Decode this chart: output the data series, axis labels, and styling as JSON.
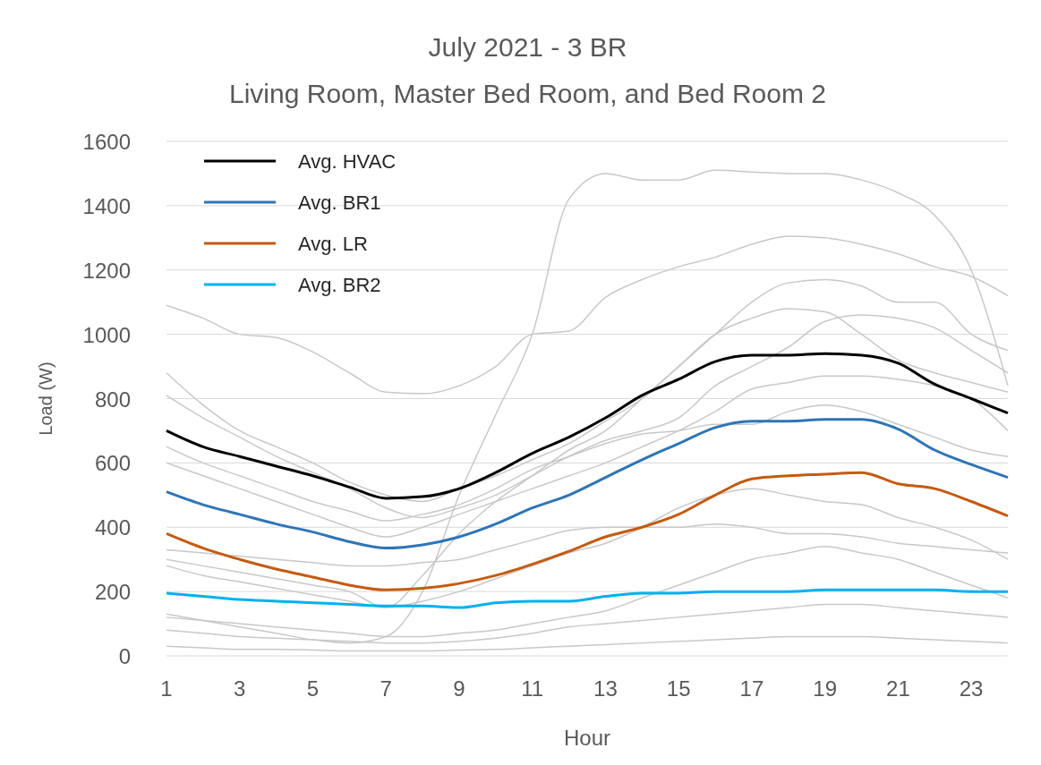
{
  "chart_data": {
    "type": "line",
    "title": "July 2021 - 3 BR",
    "subtitle": "Living Room, Master Bed Room, and Bed Room 2",
    "xlabel": "Hour",
    "ylabel": "Load (W)",
    "x": [
      1,
      2,
      3,
      4,
      5,
      6,
      7,
      8,
      9,
      10,
      11,
      12,
      13,
      14,
      15,
      16,
      17,
      18,
      19,
      20,
      21,
      22,
      23,
      24
    ],
    "xlim": [
      1,
      24
    ],
    "xticks": [
      1,
      3,
      5,
      7,
      9,
      11,
      13,
      15,
      17,
      19,
      21,
      23
    ],
    "ylim": [
      0,
      1600
    ],
    "yticks": [
      0,
      200,
      400,
      600,
      800,
      1000,
      1200,
      1400,
      1600
    ],
    "grid": "y",
    "legend": "top left",
    "marker": "none",
    "line_style": "solid",
    "series": [
      {
        "color": "#c8c8c8",
        "values": [
          1090,
          1050,
          1000,
          990,
          945,
          880,
          820,
          815,
          840,
          900,
          1000,
          1010,
          1115,
          1170,
          1210,
          1240,
          1280,
          1305,
          1300,
          1280,
          1250,
          1210,
          1180,
          1120
        ]
      },
      {
        "color": "#c8c8c8",
        "values": [
          130,
          110,
          90,
          70,
          50,
          40,
          60,
          200,
          500,
          750,
          1000,
          1420,
          1500,
          1480,
          1480,
          1510,
          1505,
          1500,
          1500,
          1480,
          1440,
          1370,
          1200,
          840
        ]
      },
      {
        "color": "#c8c8c8",
        "values": [
          880,
          780,
          700,
          650,
          600,
          540,
          500,
          480,
          520,
          560,
          610,
          660,
          730,
          800,
          900,
          1000,
          1100,
          1160,
          1170,
          1150,
          1100,
          1100,
          1000,
          950
        ]
      },
      {
        "color": "#c8c8c8",
        "values": [
          810,
          740,
          680,
          620,
          570,
          520,
          460,
          430,
          460,
          500,
          560,
          620,
          670,
          700,
          740,
          840,
          900,
          960,
          1040,
          1060,
          1050,
          1020,
          950,
          880
        ]
      },
      {
        "color": "#c8c8c8",
        "values": [
          300,
          280,
          260,
          240,
          220,
          200,
          150,
          250,
          380,
          480,
          560,
          640,
          700,
          800,
          900,
          1000,
          1050,
          1080,
          1070,
          1000,
          920,
          880,
          850,
          820
        ]
      },
      {
        "color": "#c8c8c8",
        "values": [
          600,
          560,
          520,
          480,
          440,
          400,
          370,
          400,
          440,
          480,
          520,
          560,
          600,
          650,
          700,
          760,
          830,
          850,
          870,
          870,
          860,
          840,
          800,
          700
        ]
      },
      {
        "color": "#c8c8c8",
        "values": [
          280,
          250,
          230,
          210,
          190,
          170,
          150,
          170,
          200,
          240,
          280,
          320,
          350,
          400,
          460,
          500,
          520,
          500,
          480,
          470,
          430,
          400,
          360,
          300
        ]
      },
      {
        "color": "#c8c8c8",
        "values": [
          120,
          110,
          100,
          90,
          80,
          70,
          60,
          60,
          70,
          80,
          100,
          120,
          140,
          180,
          220,
          260,
          300,
          320,
          340,
          320,
          300,
          260,
          220,
          180
        ]
      },
      {
        "color": "#c8c8c8",
        "values": [
          80,
          70,
          60,
          55,
          50,
          45,
          40,
          40,
          45,
          55,
          70,
          90,
          100,
          110,
          120,
          130,
          140,
          150,
          160,
          160,
          150,
          140,
          130,
          120
        ]
      },
      {
        "color": "#c8c8c8",
        "values": [
          30,
          25,
          20,
          20,
          18,
          15,
          15,
          15,
          18,
          20,
          25,
          30,
          35,
          40,
          45,
          50,
          55,
          60,
          60,
          60,
          55,
          50,
          45,
          40
        ]
      },
      {
        "color": "#c8c8c8",
        "values": [
          330,
          320,
          310,
          300,
          290,
          280,
          280,
          290,
          300,
          330,
          360,
          390,
          400,
          400,
          400,
          410,
          400,
          380,
          380,
          370,
          350,
          340,
          330,
          320
        ]
      },
      {
        "color": "#c8c8c8",
        "values": [
          650,
          600,
          560,
          520,
          480,
          450,
          420,
          440,
          470,
          520,
          580,
          620,
          660,
          690,
          700,
          720,
          720,
          760,
          780,
          760,
          720,
          680,
          640,
          620
        ]
      },
      {
        "name": "Avg. HVAC",
        "color": "#000000",
        "values": [
          700,
          650,
          620,
          590,
          560,
          525,
          490,
          495,
          520,
          570,
          630,
          680,
          740,
          810,
          860,
          915,
          935,
          935,
          940,
          935,
          910,
          845,
          800,
          755
        ]
      },
      {
        "name": "Avg. BR1",
        "color": "#2e75b6",
        "values": [
          510,
          470,
          440,
          410,
          385,
          355,
          335,
          345,
          370,
          410,
          460,
          500,
          555,
          610,
          660,
          710,
          730,
          730,
          735,
          735,
          705,
          640,
          595,
          555
        ]
      },
      {
        "name": "Avg. LR",
        "color": "#c55a11",
        "values": [
          380,
          335,
          300,
          270,
          245,
          220,
          205,
          210,
          225,
          250,
          285,
          325,
          370,
          400,
          440,
          500,
          550,
          560,
          565,
          570,
          535,
          520,
          480,
          435
        ]
      },
      {
        "name": "Avg. BR2",
        "color": "#00b0f0",
        "values": [
          195,
          185,
          175,
          170,
          165,
          160,
          155,
          155,
          150,
          165,
          170,
          170,
          185,
          195,
          195,
          200,
          200,
          200,
          205,
          205,
          205,
          205,
          200,
          200
        ]
      }
    ]
  }
}
